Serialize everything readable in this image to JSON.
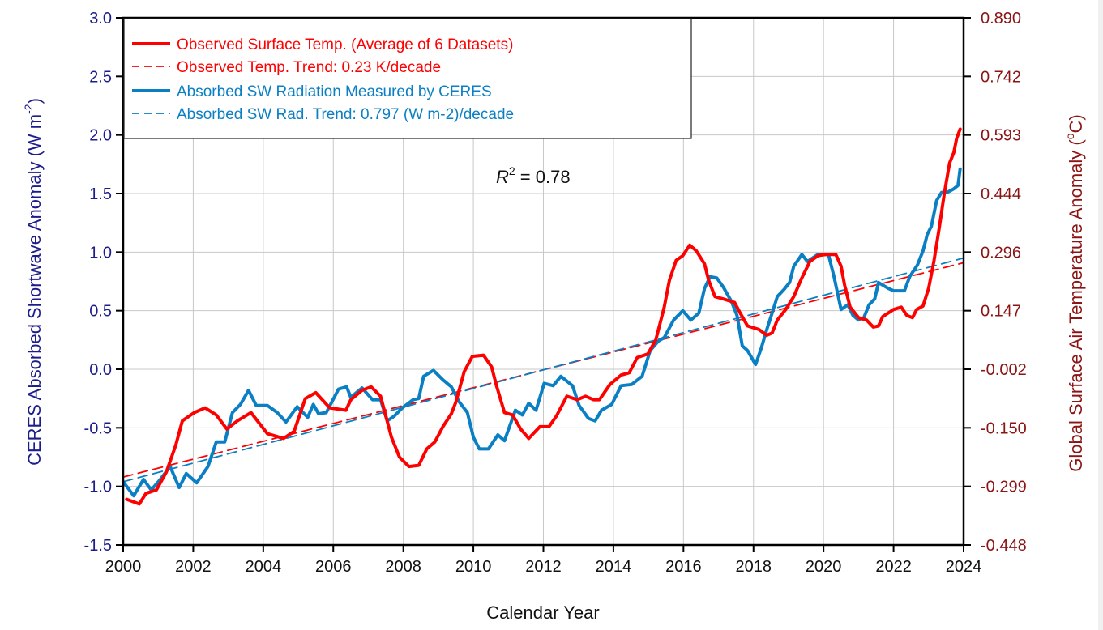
{
  "chart_data": {
    "type": "line",
    "title": "",
    "xlabel": "Calendar Year",
    "ylabel": "CERES Absorbed Shortwave Anomaly (W m-2)",
    "ylabel_parts": {
      "main": "CERES Absorbed Shortwave Anomaly (W m",
      "sup": "-2",
      "end": ")"
    },
    "y2label": "Global Surface Air Temperature Anomaly (°C)",
    "y2label_parts": {
      "main": "Global Surface Air Temperature Anomaly (",
      "sup": "o",
      "end": "C)"
    },
    "xlim": [
      2000,
      2024
    ],
    "ylim": [
      -1.5,
      3.0
    ],
    "y2lim": [
      -0.448,
      0.89
    ],
    "grid": true,
    "legend_position": "top-left",
    "x_ticks": [
      "2000",
      "2002",
      "2004",
      "2006",
      "2008",
      "2010",
      "2012",
      "2014",
      "2016",
      "2018",
      "2020",
      "2022",
      "2024"
    ],
    "y_ticks": [
      "-1.5",
      "-1.0",
      "-0.5",
      "0.0",
      "0.5",
      "1.0",
      "1.5",
      "2.0",
      "2.5",
      "3.0"
    ],
    "y2_ticks": [
      "-0.448",
      "-0.299",
      "-0.150",
      "-0.002",
      "0.147",
      "0.296",
      "0.444",
      "0.593",
      "0.742",
      "0.890"
    ],
    "annotation": {
      "label": "R",
      "sup": "2",
      "text": " = 0.78",
      "x": 2011.8,
      "y": 1.65
    },
    "series": [
      {
        "name": "Observed Surface Temp. (Average of 6 Datasets)",
        "color": "#ff0000",
        "style": "solid",
        "axis": "left-scaled",
        "x": [
          2000.1,
          2000.46,
          2000.65,
          2000.95,
          2001.23,
          2001.5,
          2001.69,
          2002.03,
          2002.34,
          2002.66,
          2002.96,
          2003.26,
          2003.65,
          2004.12,
          2004.58,
          2004.88,
          2005.2,
          2005.5,
          2005.9,
          2006.36,
          2006.5,
          2006.82,
          2007.08,
          2007.35,
          2007.51,
          2007.66,
          2007.89,
          2008.16,
          2008.44,
          2008.67,
          2008.9,
          2009.13,
          2009.37,
          2009.5,
          2009.74,
          2009.97,
          2010.29,
          2010.52,
          2010.66,
          2010.89,
          2011.12,
          2011.35,
          2011.58,
          2011.9,
          2012.16,
          2012.37,
          2012.67,
          2012.97,
          2013.2,
          2013.43,
          2013.6,
          2013.9,
          2014.22,
          2014.45,
          2014.68,
          2014.98,
          2015.21,
          2015.45,
          2015.6,
          2015.79,
          2015.98,
          2016.18,
          2016.37,
          2016.6,
          2016.72,
          2016.9,
          2017.14,
          2017.46,
          2017.6,
          2017.83,
          2018.15,
          2018.38,
          2018.53,
          2018.68,
          2018.92,
          2019.15,
          2019.38,
          2019.61,
          2019.84,
          2020.07,
          2020.35,
          2020.5,
          2020.6,
          2020.76,
          2021.0,
          2021.23,
          2021.42,
          2021.57,
          2021.69,
          2022.0,
          2022.22,
          2022.38,
          2022.54,
          2022.66,
          2022.84,
          2023.0,
          2023.15,
          2023.3,
          2023.45,
          2023.6,
          2023.72,
          2023.8,
          2023.9
        ],
        "values": [
          -1.11,
          -1.15,
          -1.06,
          -1.03,
          -0.88,
          -0.65,
          -0.44,
          -0.37,
          -0.33,
          -0.39,
          -0.51,
          -0.44,
          -0.37,
          -0.55,
          -0.59,
          -0.53,
          -0.25,
          -0.2,
          -0.33,
          -0.35,
          -0.26,
          -0.18,
          -0.15,
          -0.23,
          -0.41,
          -0.58,
          -0.75,
          -0.83,
          -0.82,
          -0.68,
          -0.62,
          -0.49,
          -0.38,
          -0.28,
          -0.02,
          0.11,
          0.12,
          0.02,
          -0.14,
          -0.37,
          -0.39,
          -0.51,
          -0.59,
          -0.49,
          -0.49,
          -0.4,
          -0.23,
          -0.26,
          -0.23,
          -0.26,
          -0.26,
          -0.13,
          -0.05,
          -0.03,
          0.1,
          0.13,
          0.25,
          0.53,
          0.76,
          0.93,
          0.97,
          1.06,
          1.01,
          0.9,
          0.76,
          0.62,
          0.6,
          0.57,
          0.49,
          0.37,
          0.34,
          0.29,
          0.31,
          0.42,
          0.51,
          0.62,
          0.78,
          0.92,
          0.97,
          0.98,
          0.98,
          0.88,
          0.72,
          0.53,
          0.44,
          0.42,
          0.36,
          0.37,
          0.45,
          0.51,
          0.53,
          0.46,
          0.44,
          0.51,
          0.54,
          0.69,
          0.92,
          1.2,
          1.5,
          1.76,
          1.85,
          1.97,
          2.05
        ]
      },
      {
        "name": "Observed Temp. Trend: 0.23 K/decade",
        "color": "#ff0000",
        "style": "dashed",
        "x": [
          2000,
          2024
        ],
        "values": [
          -0.92,
          0.91
        ]
      },
      {
        "name": "Absorbed SW Radiation Measured by CERES",
        "color": "#0a7fc4",
        "style": "solid",
        "axis": "left",
        "x": [
          2000.0,
          2000.3,
          2000.58,
          2000.8,
          2001.06,
          2001.34,
          2001.6,
          2001.8,
          2002.1,
          2002.42,
          2002.66,
          2002.9,
          2003.12,
          2003.35,
          2003.58,
          2003.8,
          2004.12,
          2004.4,
          2004.65,
          2004.97,
          2005.27,
          2005.43,
          2005.58,
          2005.8,
          2006.15,
          2006.38,
          2006.5,
          2006.82,
          2007.12,
          2007.35,
          2007.54,
          2007.74,
          2007.97,
          2008.28,
          2008.44,
          2008.58,
          2008.86,
          2009.13,
          2009.37,
          2009.6,
          2009.83,
          2010.0,
          2010.17,
          2010.43,
          2010.7,
          2010.89,
          2011.2,
          2011.4,
          2011.58,
          2011.79,
          2012.02,
          2012.28,
          2012.5,
          2012.83,
          2013.02,
          2013.29,
          2013.48,
          2013.66,
          2013.95,
          2014.22,
          2014.52,
          2014.82,
          2015.05,
          2015.28,
          2015.45,
          2015.72,
          2015.98,
          2016.21,
          2016.44,
          2016.6,
          2016.76,
          2016.95,
          2017.14,
          2017.37,
          2017.53,
          2017.68,
          2017.83,
          2018.06,
          2018.22,
          2018.38,
          2018.53,
          2018.68,
          2018.87,
          2019.03,
          2019.15,
          2019.38,
          2019.54,
          2019.84,
          2020.14,
          2020.3,
          2020.5,
          2020.69,
          2020.84,
          2021.0,
          2021.15,
          2021.3,
          2021.46,
          2021.57,
          2021.85,
          2022.0,
          2022.31,
          2022.46,
          2022.68,
          2022.84,
          2022.96,
          2023.08,
          2023.23,
          2023.37,
          2023.53,
          2023.72,
          2023.84,
          2023.9
        ],
        "values": [
          -0.96,
          -1.08,
          -0.94,
          -1.03,
          -0.94,
          -0.83,
          -1.01,
          -0.89,
          -0.97,
          -0.83,
          -0.62,
          -0.62,
          -0.37,
          -0.3,
          -0.18,
          -0.31,
          -0.31,
          -0.37,
          -0.45,
          -0.32,
          -0.41,
          -0.3,
          -0.38,
          -0.37,
          -0.17,
          -0.15,
          -0.24,
          -0.16,
          -0.26,
          -0.26,
          -0.44,
          -0.4,
          -0.33,
          -0.26,
          -0.25,
          -0.06,
          -0.01,
          -0.09,
          -0.15,
          -0.28,
          -0.37,
          -0.58,
          -0.68,
          -0.68,
          -0.56,
          -0.61,
          -0.35,
          -0.39,
          -0.29,
          -0.35,
          -0.12,
          -0.14,
          -0.06,
          -0.14,
          -0.31,
          -0.42,
          -0.44,
          -0.35,
          -0.3,
          -0.14,
          -0.13,
          -0.06,
          0.16,
          0.24,
          0.27,
          0.42,
          0.5,
          0.42,
          0.48,
          0.69,
          0.79,
          0.78,
          0.7,
          0.58,
          0.46,
          0.2,
          0.16,
          0.04,
          0.18,
          0.34,
          0.48,
          0.62,
          0.68,
          0.74,
          0.88,
          0.98,
          0.92,
          0.98,
          0.98,
          0.79,
          0.51,
          0.55,
          0.46,
          0.42,
          0.44,
          0.55,
          0.6,
          0.74,
          0.69,
          0.67,
          0.67,
          0.79,
          0.89,
          1.01,
          1.15,
          1.22,
          1.44,
          1.51,
          1.51,
          1.54,
          1.57,
          1.71
        ]
      },
      {
        "name": "Absorbed SW Rad. Trend: 0.797 (W m-2)/decade",
        "color": "#0a7fc4",
        "style": "dashed",
        "x": [
          2000,
          2024
        ],
        "values": [
          -0.96,
          0.95
        ]
      }
    ]
  },
  "legend": [
    {
      "label": "Observed Surface Temp. (Average of 6 Datasets)",
      "color": "#ff0000",
      "style": "solid"
    },
    {
      "label": "Observed Temp. Trend: 0.23 K/decade",
      "color": "#ff0000",
      "style": "dashed"
    },
    {
      "label": "Absorbed SW Radiation Measured by CERES",
      "color": "#0a7fc4",
      "style": "solid"
    },
    {
      "label": "Absorbed SW Rad. Trend: 0.797 (W m-2)/decade",
      "color": "#0a7fc4",
      "style": "dashed"
    }
  ],
  "colors": {
    "left_axis": "#1c1c8a",
    "right_axis": "#8b1414",
    "grid": "#c8c8c8"
  }
}
